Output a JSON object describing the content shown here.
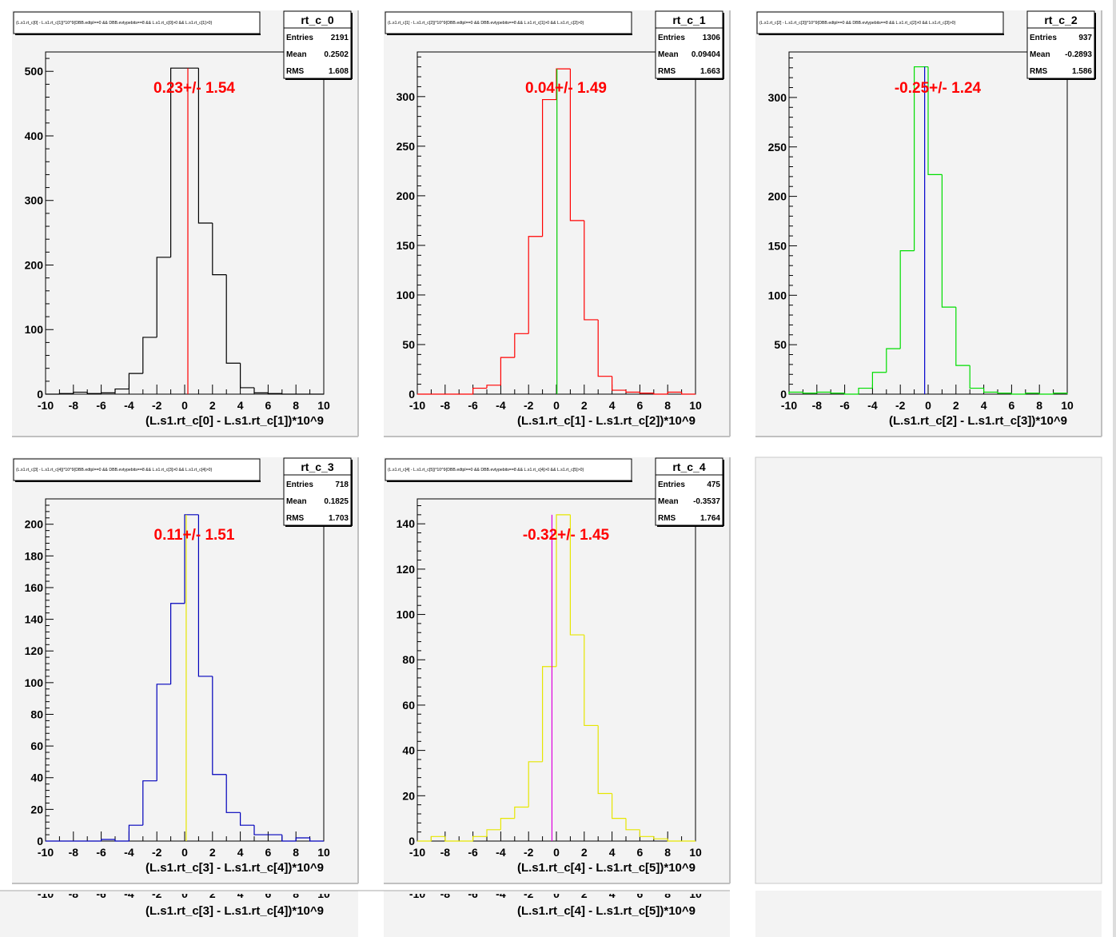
{
  "colors": {
    "pad_background": "#f3f3f3",
    "frame": "#000000",
    "fit_text": "#ff0000"
  },
  "panels": [
    {
      "hist_name": "rt_c_0",
      "title": "(L.s1.rt_c[0] - L.s1.rt_c[1])*10^9{DBB.edtpl==0 && DBB.evtypebits==8 && L.s1.rt_c[0]>0 && L.s1.rt_c[1]>0}",
      "xlabel": "(L.s1.rt_c[0] - L.s1.rt_c[1])*10^9",
      "stats": [
        {
          "label": "Entries",
          "value": "2191"
        },
        {
          "label": "Mean",
          "value": "0.2502"
        },
        {
          "label": "RMS",
          "value": "1.608"
        }
      ],
      "fit_text": "0.23+/- 1.54",
      "hist_color": "#000000",
      "marker_color": "#ff0000",
      "marker_x": 0.23,
      "ylim": [
        0,
        530
      ],
      "yticks": [
        0,
        100,
        200,
        300,
        400,
        500
      ]
    },
    {
      "hist_name": "rt_c_1",
      "title": "(L.s1.rt_c[1] - L.s1.rt_c[2])*10^9{DBB.edtpl==0 && DBB.evtypebits==8 && L.s1.rt_c[1]>0 && L.s1.rt_c[2]>0}",
      "xlabel": "(L.s1.rt_c[1] - L.s1.rt_c[2])*10^9",
      "stats": [
        {
          "label": "Entries",
          "value": "1306"
        },
        {
          "label": "Mean",
          "value": "0.09404"
        },
        {
          "label": "RMS",
          "value": "1.663"
        }
      ],
      "fit_text": "0.04+/- 1.49",
      "hist_color": "#ff0000",
      "marker_color": "#00cc00",
      "marker_x": 0.04,
      "ylim": [
        0,
        345
      ],
      "yticks": [
        0,
        50,
        100,
        150,
        200,
        250,
        300
      ]
    },
    {
      "hist_name": "rt_c_2",
      "title": "(L.s1.rt_c[2] - L.s1.rt_c[3])*10^9{DBB.edtpl==0 && DBB.evtypebits==8 && L.s1.rt_c[2]>0 && L.s1.rt_c[3]>0}",
      "xlabel": "(L.s1.rt_c[2] - L.s1.rt_c[3])*10^9",
      "stats": [
        {
          "label": "Entries",
          "value": "937"
        },
        {
          "label": "Mean",
          "value": "-0.2893"
        },
        {
          "label": "RMS",
          "value": "1.586"
        }
      ],
      "fit_text": "-0.25+/- 1.24",
      "hist_color": "#00dd00",
      "marker_color": "#0000cc",
      "marker_x": -0.25,
      "ylim": [
        0,
        346
      ],
      "yticks": [
        0,
        50,
        100,
        150,
        200,
        250,
        300
      ]
    },
    {
      "hist_name": "rt_c_3",
      "title": "(L.s1.rt_c[3] - L.s1.rt_c[4])*10^9{DBB.edtpl==0 && DBB.evtypebits==8 && L.s1.rt_c[3]>0 && L.s1.rt_c[4]>0}",
      "xlabel": "(L.s1.rt_c[3] - L.s1.rt_c[4])*10^9",
      "stats": [
        {
          "label": "Entries",
          "value": "718"
        },
        {
          "label": "Mean",
          "value": "0.1825"
        },
        {
          "label": "RMS",
          "value": "1.703"
        }
      ],
      "fit_text": "0.11+/- 1.51",
      "hist_color": "#0000bb",
      "marker_color": "#e6e600",
      "marker_x": 0.11,
      "ylim": [
        0,
        216
      ],
      "yticks": [
        0,
        20,
        40,
        60,
        80,
        100,
        120,
        140,
        160,
        180,
        200
      ]
    },
    {
      "hist_name": "rt_c_4",
      "title": "(L.s1.rt_c[4] - L.s1.rt_c[5])*10^9{DBB.edtpl==0 && DBB.evtypebits==8 && L.s1.rt_c[4]>0 && L.s1.rt_c[5]>0}",
      "xlabel": "(L.s1.rt_c[4] - L.s1.rt_c[5])*10^9",
      "stats": [
        {
          "label": "Entries",
          "value": "475"
        },
        {
          "label": "Mean",
          "value": "-0.3537"
        },
        {
          "label": "RMS",
          "value": "1.764"
        }
      ],
      "fit_text": "-0.32+/- 1.45",
      "hist_color": "#e6e600",
      "marker_color": "#dd00dd",
      "marker_x": -0.32,
      "ylim": [
        0,
        151
      ],
      "yticks": [
        0,
        20,
        40,
        60,
        80,
        100,
        120,
        140
      ]
    }
  ],
  "ghost_axis": [
    {
      "xlabel": "(L.s1.rt_c[3] - L.s1.rt_c[4])*10^9"
    },
    {
      "xlabel": "(L.s1.rt_c[4] - L.s1.rt_c[5])*10^9"
    }
  ],
  "chart_data": [
    {
      "type": "bar",
      "title": "rt_c_0",
      "xlabel": "(L.s1.rt_c[0] - L.s1.rt_c[1])*10^9",
      "xlim": [
        -10,
        10
      ],
      "ylim": [
        0,
        530
      ],
      "bin_width": 1,
      "x_left_edges": [
        -10,
        -9,
        -8,
        -7,
        -6,
        -5,
        -4,
        -3,
        -2,
        -1,
        0,
        1,
        2,
        3,
        4,
        5,
        6,
        7,
        8,
        9
      ],
      "values": [
        0,
        1,
        3,
        1,
        2,
        8,
        32,
        88,
        212,
        505,
        505,
        265,
        185,
        48,
        10,
        2,
        1,
        0,
        0,
        0
      ],
      "vertical_line_x": 0.23
    },
    {
      "type": "bar",
      "title": "rt_c_1",
      "xlabel": "(L.s1.rt_c[1] - L.s1.rt_c[2])*10^9",
      "xlim": [
        -10,
        10
      ],
      "ylim": [
        0,
        345
      ],
      "bin_width": 1,
      "x_left_edges": [
        -10,
        -9,
        -8,
        -7,
        -6,
        -5,
        -4,
        -3,
        -2,
        -1,
        0,
        1,
        2,
        3,
        4,
        5,
        6,
        7,
        8,
        9
      ],
      "values": [
        0,
        0,
        0,
        0,
        6,
        9,
        37,
        61,
        159,
        297,
        328,
        175,
        75,
        18,
        4,
        2,
        1,
        0,
        2,
        0
      ],
      "vertical_line_x": 0.04
    },
    {
      "type": "bar",
      "title": "rt_c_2",
      "xlabel": "(L.s1.rt_c[2] - L.s1.rt_c[3])*10^9",
      "xlim": [
        -10,
        10
      ],
      "ylim": [
        0,
        346
      ],
      "bin_width": 1,
      "x_left_edges": [
        -10,
        -9,
        -8,
        -7,
        -6,
        -5,
        -4,
        -3,
        -2,
        -1,
        0,
        1,
        2,
        3,
        4,
        5,
        6,
        7,
        8,
        9
      ],
      "values": [
        2,
        1,
        2,
        1,
        0,
        6,
        22,
        46,
        145,
        331,
        222,
        88,
        29,
        6,
        2,
        1,
        0,
        1,
        0,
        1
      ],
      "vertical_line_x": -0.25
    },
    {
      "type": "bar",
      "title": "rt_c_3",
      "xlabel": "(L.s1.rt_c[3] - L.s1.rt_c[4])*10^9",
      "xlim": [
        -10,
        10
      ],
      "ylim": [
        0,
        216
      ],
      "bin_width": 1,
      "x_left_edges": [
        -10,
        -9,
        -8,
        -7,
        -6,
        -5,
        -4,
        -3,
        -2,
        -1,
        0,
        1,
        2,
        3,
        4,
        5,
        6,
        7,
        8,
        9
      ],
      "values": [
        0,
        0,
        0,
        0,
        1,
        0,
        10,
        38,
        99,
        150,
        206,
        104,
        42,
        18,
        10,
        4,
        4,
        0,
        2,
        0
      ],
      "vertical_line_x": 0.11
    },
    {
      "type": "bar",
      "title": "rt_c_4",
      "xlabel": "(L.s1.rt_c[4] - L.s1.rt_c[5])*10^9",
      "xlim": [
        -10,
        10
      ],
      "ylim": [
        0,
        151
      ],
      "bin_width": 1,
      "x_left_edges": [
        -10,
        -9,
        -8,
        -7,
        -6,
        -5,
        -4,
        -3,
        -2,
        -1,
        0,
        1,
        2,
        3,
        4,
        5,
        6,
        7,
        8,
        9
      ],
      "values": [
        0,
        2,
        0,
        0,
        2,
        5,
        10,
        15,
        35,
        77,
        144,
        91,
        51,
        21,
        10,
        5,
        2,
        1,
        0,
        0
      ],
      "vertical_line_x": -0.32
    }
  ]
}
